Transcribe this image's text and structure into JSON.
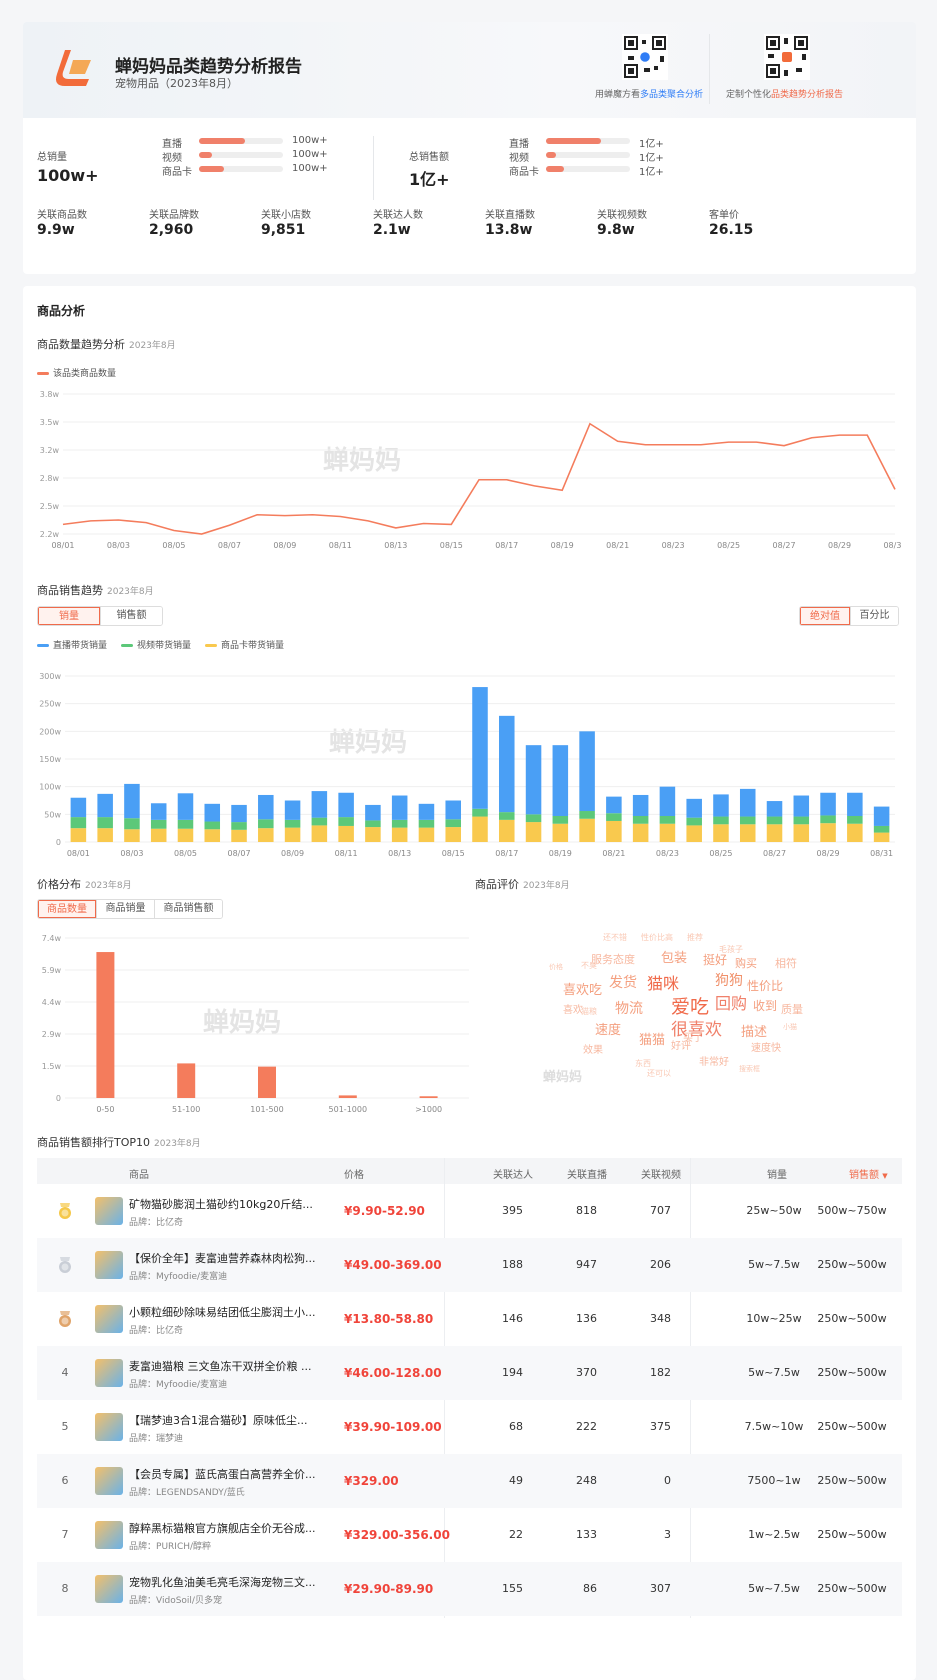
{
  "header": {
    "title": "蝉妈妈品类趋势分析报告",
    "subtitle": "宠物用品（2023年8月）",
    "qr1_caption_prefix": "用蝉魔方看",
    "qr1_caption_link": "多品类聚合分析",
    "qr2_caption_prefix": "定制个性化",
    "qr2_caption_link": "品类趋势分析报告"
  },
  "stats": {
    "total_sales_label": "总销量",
    "total_sales_value": "100w+",
    "sales_channels": [
      {
        "label": "直播",
        "value": "100w+",
        "fill": 0.55
      },
      {
        "label": "视频",
        "value": "100w+",
        "fill": 0.15
      },
      {
        "label": "商品卡",
        "value": "100w+",
        "fill": 0.3
      }
    ],
    "total_gmv_label": "总销售额",
    "total_gmv_value": "1亿+",
    "gmv_channels": [
      {
        "label": "直播",
        "value": "1亿+",
        "fill": 0.65
      },
      {
        "label": "视频",
        "value": "1亿+",
        "fill": 0.12
      },
      {
        "label": "商品卡",
        "value": "1亿+",
        "fill": 0.22
      }
    ],
    "metrics": [
      {
        "label": "关联商品数",
        "value": "9.9w"
      },
      {
        "label": "关联品牌数",
        "value": "2,960"
      },
      {
        "label": "关联小店数",
        "value": "9,851"
      },
      {
        "label": "关联达人数",
        "value": "2.1w"
      },
      {
        "label": "关联直播数",
        "value": "13.8w"
      },
      {
        "label": "关联视频数",
        "value": "9.8w"
      },
      {
        "label": "客单价",
        "value": "26.15"
      }
    ]
  },
  "analysis": {
    "section_title": "商品分析",
    "watermark": "蝉妈妈",
    "count_trend": {
      "title": "商品数量趋势分析",
      "date": "2023年8月",
      "legend": "该品类商品数量"
    },
    "sales_trend": {
      "title": "商品销售趋势",
      "date": "2023年8月",
      "tabs": [
        "销量",
        "销售额"
      ],
      "active_tab": "销量",
      "modes": [
        "绝对值",
        "百分比"
      ],
      "active_mode": "绝对值",
      "legend": [
        "直播带货销量",
        "视频带货销量",
        "商品卡带货销量"
      ]
    },
    "price_dist": {
      "title": "价格分布",
      "date": "2023年8月",
      "tabs": [
        "商品数量",
        "商品销量",
        "商品销售额"
      ],
      "active_tab": "商品数量"
    },
    "review": {
      "title": "商品评价",
      "date": "2023年8月"
    },
    "top10": {
      "title": "商品销售额排行TOP10",
      "date": "2023年8月",
      "columns": [
        "商品",
        "价格",
        "关联达人",
        "关联直播",
        "关联视频",
        "销量",
        "销售额"
      ],
      "sort_indicator": "▼",
      "brand_prefix": "品牌：",
      "rows": [
        {
          "rank": "1",
          "name": "矿物猫砂膨润土猫砂约10kg20斤结...",
          "brand": "比亿奇",
          "price": "¥9.90-52.90",
          "influencers": "395",
          "lives": "818",
          "videos": "707",
          "sales": "25w~50w",
          "gmv": "500w~750w"
        },
        {
          "rank": "2",
          "name": "【保价全年】麦富迪营养森林肉松狗...",
          "brand": "Myfoodie/麦富迪",
          "price": "¥49.00-369.00",
          "influencers": "188",
          "lives": "947",
          "videos": "206",
          "sales": "5w~7.5w",
          "gmv": "250w~500w"
        },
        {
          "rank": "3",
          "name": "小颗粒细砂除味易结团低尘膨润土小...",
          "brand": "比亿奇",
          "price": "¥13.80-58.80",
          "influencers": "146",
          "lives": "136",
          "videos": "348",
          "sales": "10w~25w",
          "gmv": "250w~500w"
        },
        {
          "rank": "4",
          "name": "麦富迪猫粮 三文鱼冻干双拼全价粮 ...",
          "brand": "Myfoodie/麦富迪",
          "price": "¥46.00-128.00",
          "influencers": "194",
          "lives": "370",
          "videos": "182",
          "sales": "5w~7.5w",
          "gmv": "250w~500w"
        },
        {
          "rank": "5",
          "name": "【瑞梦迪3合1混合猫砂】原味低尘...",
          "brand": "瑞梦迪",
          "price": "¥39.90-109.00",
          "influencers": "68",
          "lives": "222",
          "videos": "375",
          "sales": "7.5w~10w",
          "gmv": "250w~500w"
        },
        {
          "rank": "6",
          "name": "【会员专属】蓝氏高蛋白高营养全价...",
          "brand": "LEGENDSANDY/蓝氏",
          "price": "¥329.00",
          "influencers": "49",
          "lives": "248",
          "videos": "0",
          "sales": "7500~1w",
          "gmv": "250w~500w"
        },
        {
          "rank": "7",
          "name": "醇粹黑标猫粮官方旗舰店全价无谷成...",
          "brand": "PURICH/醇粹",
          "price": "¥329.00-356.00",
          "influencers": "22",
          "lives": "133",
          "videos": "3",
          "sales": "1w~2.5w",
          "gmv": "250w~500w"
        },
        {
          "rank": "8",
          "name": "宠物乳化鱼油美毛亮毛深海宠物三文...",
          "brand": "VidoSoil/贝多宠",
          "price": "¥29.90-89.90",
          "influencers": "155",
          "lives": "86",
          "videos": "307",
          "sales": "5w~7.5w",
          "gmv": "250w~500w"
        }
      ]
    },
    "wordcloud": [
      {
        "t": "爱吃",
        "s": 19,
        "c": "#f06a4a"
      },
      {
        "t": "很喜欢",
        "s": 17,
        "c": "#f0806a"
      },
      {
        "t": "回购",
        "s": 16,
        "c": "#f0806a"
      },
      {
        "t": "猫咪",
        "s": 16,
        "c": "#f06a4a"
      },
      {
        "t": "狗狗",
        "s": 14,
        "c": "#f0906a"
      },
      {
        "t": "物流",
        "s": 14,
        "c": "#f4a080"
      },
      {
        "t": "发货",
        "s": 14,
        "c": "#f4a080"
      },
      {
        "t": "包装",
        "s": 13,
        "c": "#f4a080"
      },
      {
        "t": "喜欢吃",
        "s": 13,
        "c": "#f4a080"
      },
      {
        "t": "速度",
        "s": 13,
        "c": "#f4a080"
      },
      {
        "t": "猫猫",
        "s": 13,
        "c": "#f4a080"
      },
      {
        "t": "描述",
        "s": 13,
        "c": "#f4a080"
      },
      {
        "t": "收到",
        "s": 12,
        "c": "#f4a080"
      },
      {
        "t": "性价比",
        "s": 12,
        "c": "#f4a080"
      },
      {
        "t": "挺好",
        "s": 12,
        "c": "#f4a080"
      },
      {
        "t": "购买",
        "s": 11,
        "c": "#f4a080"
      },
      {
        "t": "服务态度",
        "s": 11,
        "c": "#f7b8a0"
      },
      {
        "t": "质量",
        "s": 11,
        "c": "#f7b8a0"
      },
      {
        "t": "速度快",
        "s": 10,
        "c": "#f7b8a0"
      },
      {
        "t": "相符",
        "s": 11,
        "c": "#f7b8a0"
      },
      {
        "t": "喜欢",
        "s": 10,
        "c": "#f7b8a0"
      },
      {
        "t": "好评",
        "s": 10,
        "c": "#f7b8a0"
      },
      {
        "t": "非常好",
        "s": 10,
        "c": "#f7b8a0"
      },
      {
        "t": "效果",
        "s": 10,
        "c": "#f7b8a0"
      },
      {
        "t": "买了",
        "s": 10,
        "c": "#f7b8a0"
      },
      {
        "t": "还不错",
        "s": 8,
        "c": "#f9c8b4"
      },
      {
        "t": "性价比高",
        "s": 8,
        "c": "#f9c8b4"
      },
      {
        "t": "推荐",
        "s": 8,
        "c": "#f9c8b4"
      },
      {
        "t": "毛孩子",
        "s": 8,
        "c": "#f9c8b4"
      },
      {
        "t": "猫粮",
        "s": 8,
        "c": "#f9c8b4"
      },
      {
        "t": "不臭",
        "s": 8,
        "c": "#f9c8b4"
      },
      {
        "t": "东西",
        "s": 8,
        "c": "#f9c8b4"
      },
      {
        "t": "还可以",
        "s": 8,
        "c": "#f9c8b4"
      },
      {
        "t": "搜索框",
        "s": 7,
        "c": "#f9c8b4"
      },
      {
        "t": "价格",
        "s": 7,
        "c": "#f9c8b4"
      },
      {
        "t": "小猫",
        "s": 7,
        "c": "#f9c8b4"
      }
    ]
  },
  "chart_data": [
    {
      "type": "line",
      "title": "商品数量趋势分析",
      "series": [
        {
          "name": "该品类商品数量",
          "values": [
            2.31,
            2.35,
            2.36,
            2.33,
            2.24,
            2.2,
            2.3,
            2.42,
            2.41,
            2.42,
            2.4,
            2.35,
            2.27,
            2.32,
            2.31,
            2.82,
            2.82,
            2.75,
            2.7,
            3.46,
            3.26,
            3.22,
            3.22,
            3.22,
            3.25,
            3.25,
            3.21,
            3.3,
            3.33,
            3.33,
            2.71
          ]
        }
      ],
      "x": [
        "08/01",
        "08/02",
        "08/03",
        "08/04",
        "08/05",
        "08/06",
        "08/07",
        "08/08",
        "08/09",
        "08/10",
        "08/11",
        "08/12",
        "08/13",
        "08/14",
        "08/15",
        "08/16",
        "08/17",
        "08/18",
        "08/19",
        "08/20",
        "08/21",
        "08/22",
        "08/23",
        "08/24",
        "08/25",
        "08/26",
        "08/27",
        "08/28",
        "08/29",
        "08/30",
        "08/31"
      ],
      "xticks": [
        "08/01",
        "08/03",
        "08/05",
        "08/07",
        "08/09",
        "08/11",
        "08/13",
        "08/15",
        "08/17",
        "08/19",
        "08/21",
        "08/23",
        "08/25",
        "08/27",
        "08/29",
        "08/31"
      ],
      "yticks": [
        "2.2w",
        "2.5w",
        "2.8w",
        "3.2w",
        "3.5w",
        "3.8w"
      ],
      "ylim": [
        2.2,
        3.8
      ],
      "unit": "w"
    },
    {
      "type": "bar",
      "stacked": true,
      "title": "商品销售趋势",
      "x": [
        "08/01",
        "08/02",
        "08/03",
        "08/04",
        "08/05",
        "08/06",
        "08/07",
        "08/08",
        "08/09",
        "08/10",
        "08/11",
        "08/12",
        "08/13",
        "08/14",
        "08/15",
        "08/16",
        "08/17",
        "08/18",
        "08/19",
        "08/20",
        "08/21",
        "08/22",
        "08/23",
        "08/24",
        "08/25",
        "08/26",
        "08/27",
        "08/28",
        "08/29",
        "08/30",
        "08/31"
      ],
      "xticks": [
        "08/01",
        "08/03",
        "08/05",
        "08/07",
        "08/09",
        "08/11",
        "08/13",
        "08/15",
        "08/17",
        "08/19",
        "08/21",
        "08/23",
        "08/25",
        "08/27",
        "08/29",
        "08/31"
      ],
      "series": [
        {
          "name": "商品卡带货销量",
          "color": "#f9c94e",
          "values": [
            25,
            25,
            23,
            24,
            24,
            23,
            22,
            25,
            26,
            30,
            29,
            27,
            26,
            26,
            27,
            46,
            40,
            36,
            33,
            42,
            38,
            33,
            33,
            30,
            32,
            32,
            32,
            32,
            34,
            33,
            17
          ]
        },
        {
          "name": "视频带货销量",
          "color": "#5cc879",
          "values": [
            20,
            20,
            20,
            16,
            16,
            14,
            14,
            16,
            14,
            14,
            16,
            12,
            14,
            14,
            14,
            14,
            14,
            14,
            14,
            14,
            14,
            14,
            14,
            14,
            14,
            14,
            14,
            14,
            14,
            14,
            12
          ]
        },
        {
          "name": "直播带货销量",
          "color": "#4a9ff5",
          "values": [
            35,
            42,
            62,
            30,
            48,
            32,
            31,
            44,
            35,
            48,
            44,
            28,
            44,
            29,
            34,
            220,
            174,
            125,
            128,
            144,
            30,
            38,
            53,
            34,
            40,
            50,
            28,
            38,
            41,
            42,
            35
          ]
        }
      ],
      "yticks": [
        "0",
        "50w",
        "100w",
        "150w",
        "200w",
        "250w",
        "300w"
      ],
      "ylim": [
        0,
        300
      ],
      "unit": "w"
    },
    {
      "type": "bar",
      "title": "价格分布",
      "categories": [
        "0-50",
        "51-100",
        "101-500",
        "501-1000",
        ">1000"
      ],
      "values": [
        6.75,
        1.6,
        1.45,
        0.12,
        0.08
      ],
      "yticks": [
        "0",
        "1.5w",
        "2.9w",
        "4.4w",
        "5.9w",
        "7.4w"
      ],
      "ylim": [
        0,
        7.4
      ],
      "unit": "w",
      "color": "#f47c5c"
    }
  ]
}
